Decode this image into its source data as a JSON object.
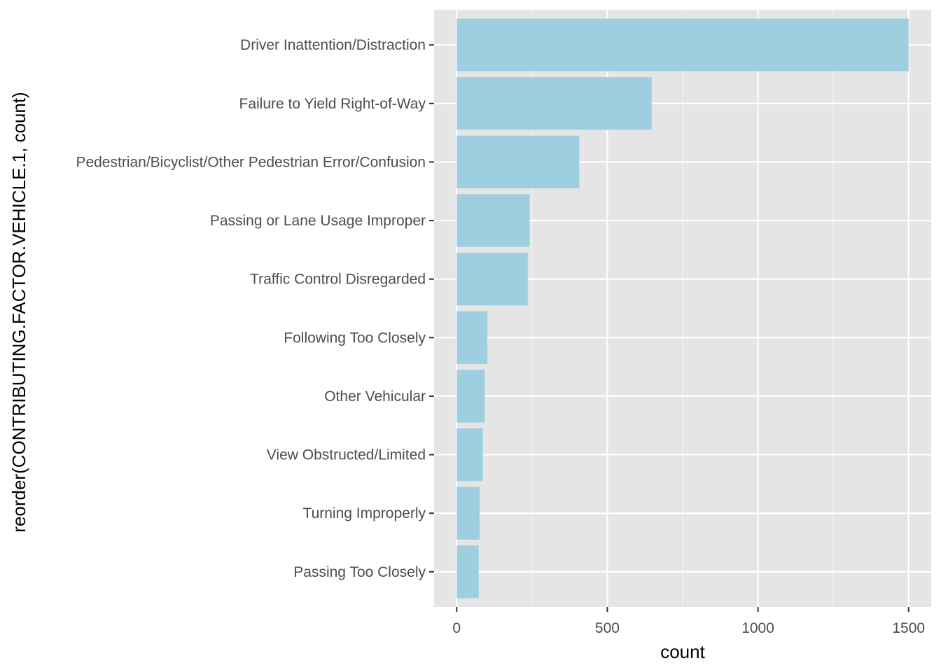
{
  "chart_data": {
    "type": "bar",
    "orientation": "horizontal",
    "categories": [
      "Driver Inattention/Distraction",
      "Failure to Yield Right-of-Way",
      "Pedestrian/Bicyclist/Other Pedestrian Error/Confusion",
      "Passing or Lane Usage Improper",
      "Traffic Control Disregarded",
      "Following Too Closely",
      "Other Vehicular",
      "View Obstructed/Limited",
      "Turning Improperly",
      "Passing Too Closely"
    ],
    "values": [
      1500,
      647,
      407,
      242,
      236,
      102,
      93,
      87,
      76,
      73
    ],
    "xlabel": "count",
    "ylabel": "reorder(CONTRIBUTING.FACTOR.VEHICLE.1, count)",
    "xlim": [
      -75,
      1575
    ],
    "xticks": [
      0,
      500,
      1000,
      1500
    ],
    "grid": true,
    "legend": "none",
    "colors": {
      "bar": "#9ecfe0",
      "panel_background": "#e5e5e5",
      "grid_major": "#ffffff",
      "grid_minor": "#f2f2f2",
      "tick_label": "#4d4d4d",
      "axis_title": "#000000"
    }
  }
}
